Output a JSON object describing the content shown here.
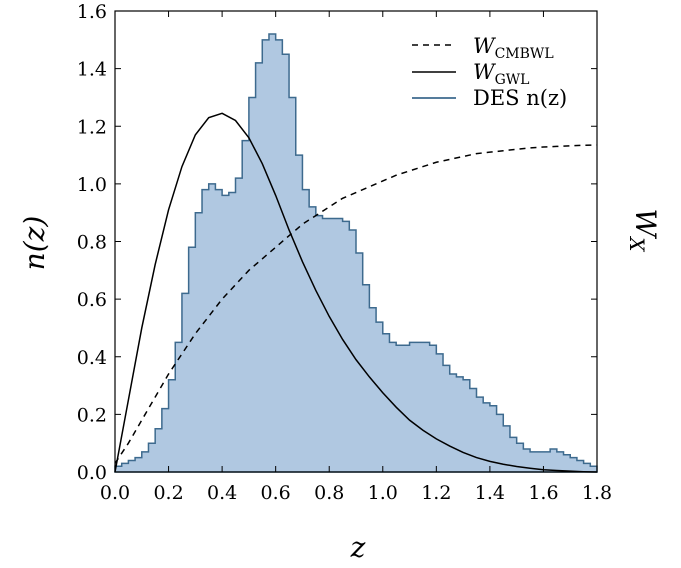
{
  "chart_data": {
    "type": "area",
    "xlabel": "z",
    "ylabel": "n(z)",
    "y2label": "W_X",
    "xlim": [
      0.0,
      1.8
    ],
    "ylim": [
      0.0,
      1.6
    ],
    "xticks": [
      "0.0",
      "0.2",
      "0.4",
      "0.6",
      "0.8",
      "1.0",
      "1.2",
      "1.4",
      "1.6",
      "1.8"
    ],
    "yticks": [
      "0.0",
      "0.2",
      "0.4",
      "0.6",
      "0.8",
      "1.0",
      "1.2",
      "1.4",
      "1.6"
    ],
    "grid": false,
    "legend_position": "top-right",
    "legend": [
      {
        "main": "W",
        "sub": "CMBWL",
        "style": "dashed"
      },
      {
        "main": "W",
        "sub": "GWL",
        "style": "solid"
      },
      {
        "main": "DES n(z)",
        "sub": "",
        "style": "filled-step"
      }
    ],
    "colors": {
      "des_fill": "#b0c8e1",
      "des_edge": "#3d6a8e",
      "lines": "#000000"
    },
    "series": [
      {
        "name": "DES n(z)",
        "kind": "histogram",
        "x": [
          0.0,
          0.025,
          0.05,
          0.075,
          0.1,
          0.125,
          0.15,
          0.175,
          0.2,
          0.225,
          0.25,
          0.275,
          0.3,
          0.325,
          0.35,
          0.375,
          0.4,
          0.425,
          0.45,
          0.475,
          0.5,
          0.525,
          0.55,
          0.575,
          0.6,
          0.625,
          0.65,
          0.675,
          0.7,
          0.725,
          0.75,
          0.775,
          0.8,
          0.825,
          0.85,
          0.875,
          0.9,
          0.925,
          0.95,
          0.975,
          1.0,
          1.025,
          1.05,
          1.075,
          1.1,
          1.125,
          1.15,
          1.175,
          1.2,
          1.225,
          1.25,
          1.275,
          1.3,
          1.325,
          1.35,
          1.375,
          1.4,
          1.425,
          1.45,
          1.475,
          1.5,
          1.525,
          1.55,
          1.575,
          1.6,
          1.625,
          1.65,
          1.675,
          1.7,
          1.725,
          1.75,
          1.775,
          1.8
        ],
        "y": [
          0.02,
          0.03,
          0.04,
          0.05,
          0.07,
          0.1,
          0.15,
          0.22,
          0.32,
          0.45,
          0.62,
          0.78,
          0.9,
          0.98,
          1.0,
          0.98,
          0.96,
          0.97,
          1.02,
          1.15,
          1.3,
          1.42,
          1.5,
          1.52,
          1.5,
          1.45,
          1.3,
          1.1,
          0.98,
          0.92,
          0.89,
          0.88,
          0.88,
          0.88,
          0.87,
          0.84,
          0.76,
          0.65,
          0.57,
          0.52,
          0.48,
          0.45,
          0.44,
          0.44,
          0.45,
          0.45,
          0.45,
          0.44,
          0.41,
          0.37,
          0.34,
          0.33,
          0.32,
          0.29,
          0.26,
          0.24,
          0.23,
          0.2,
          0.16,
          0.12,
          0.1,
          0.08,
          0.07,
          0.07,
          0.07,
          0.08,
          0.07,
          0.06,
          0.05,
          0.04,
          0.03,
          0.02,
          0.02
        ]
      },
      {
        "name": "W_GWL",
        "kind": "line",
        "style": "solid",
        "x": [
          0.0,
          0.05,
          0.1,
          0.15,
          0.2,
          0.25,
          0.3,
          0.35,
          0.4,
          0.45,
          0.5,
          0.55,
          0.6,
          0.65,
          0.7,
          0.75,
          0.8,
          0.85,
          0.9,
          0.95,
          1.0,
          1.05,
          1.1,
          1.15,
          1.2,
          1.25,
          1.3,
          1.35,
          1.4,
          1.45,
          1.5,
          1.55,
          1.6,
          1.65,
          1.7,
          1.75,
          1.8
        ],
        "y": [
          0.0,
          0.25,
          0.5,
          0.72,
          0.91,
          1.06,
          1.17,
          1.23,
          1.245,
          1.22,
          1.16,
          1.07,
          0.96,
          0.84,
          0.73,
          0.63,
          0.54,
          0.46,
          0.39,
          0.33,
          0.275,
          0.225,
          0.18,
          0.145,
          0.115,
          0.09,
          0.068,
          0.05,
          0.037,
          0.027,
          0.019,
          0.013,
          0.008,
          0.005,
          0.003,
          0.001,
          0.0
        ]
      },
      {
        "name": "W_CMBWL",
        "kind": "line",
        "style": "dashed",
        "x": [
          0.0,
          0.05,
          0.1,
          0.15,
          0.2,
          0.25,
          0.3,
          0.35,
          0.4,
          0.45,
          0.5,
          0.55,
          0.6,
          0.65,
          0.7,
          0.75,
          0.8,
          0.85,
          0.9,
          0.95,
          1.0,
          1.05,
          1.1,
          1.15,
          1.2,
          1.25,
          1.3,
          1.35,
          1.4,
          1.45,
          1.5,
          1.55,
          1.6,
          1.65,
          1.7,
          1.75,
          1.8
        ],
        "y": [
          0.03,
          0.1,
          0.18,
          0.26,
          0.34,
          0.41,
          0.48,
          0.54,
          0.6,
          0.65,
          0.7,
          0.74,
          0.78,
          0.82,
          0.86,
          0.89,
          0.92,
          0.95,
          0.97,
          0.99,
          1.01,
          1.03,
          1.045,
          1.06,
          1.075,
          1.085,
          1.095,
          1.105,
          1.11,
          1.115,
          1.12,
          1.125,
          1.128,
          1.13,
          1.132,
          1.134,
          1.135
        ]
      }
    ]
  }
}
